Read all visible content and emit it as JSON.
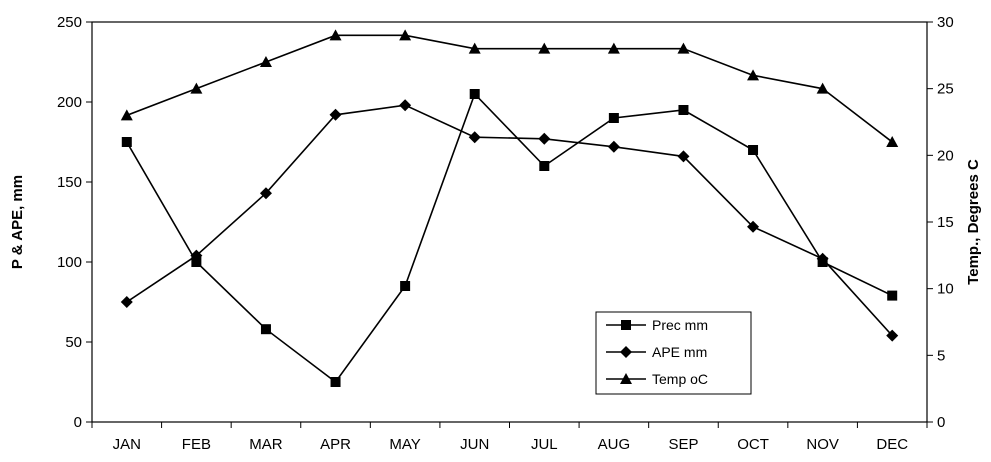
{
  "chart_data": {
    "type": "line",
    "categories": [
      "JAN",
      "FEB",
      "MAR",
      "APR",
      "MAY",
      "JUN",
      "JUL",
      "AUG",
      "SEP",
      "OCT",
      "NOV",
      "DEC"
    ],
    "ylabel": "P & APE, mm",
    "y2label": "Temp., Degrees C",
    "ylim": [
      0,
      250
    ],
    "y2lim": [
      0,
      30
    ],
    "yticks": [
      0,
      50,
      100,
      150,
      200,
      250
    ],
    "y2ticks": [
      0,
      5,
      10,
      15,
      20,
      25,
      30
    ],
    "grid": false,
    "legend_position": "bottom-right",
    "series": [
      {
        "name": "Prec mm",
        "axis": "left",
        "marker": "square",
        "values": [
          175,
          100,
          58,
          25,
          85,
          205,
          160,
          190,
          195,
          170,
          100,
          79
        ]
      },
      {
        "name": "APE mm",
        "axis": "left",
        "marker": "diamond",
        "values": [
          75,
          104,
          143,
          192,
          198,
          178,
          177,
          172,
          166,
          122,
          102,
          54
        ]
      },
      {
        "name": "Temp oC",
        "axis": "right",
        "marker": "triangle",
        "values": [
          23,
          25,
          27,
          29,
          29,
          28,
          28,
          28,
          28,
          26,
          25,
          21
        ]
      }
    ]
  }
}
